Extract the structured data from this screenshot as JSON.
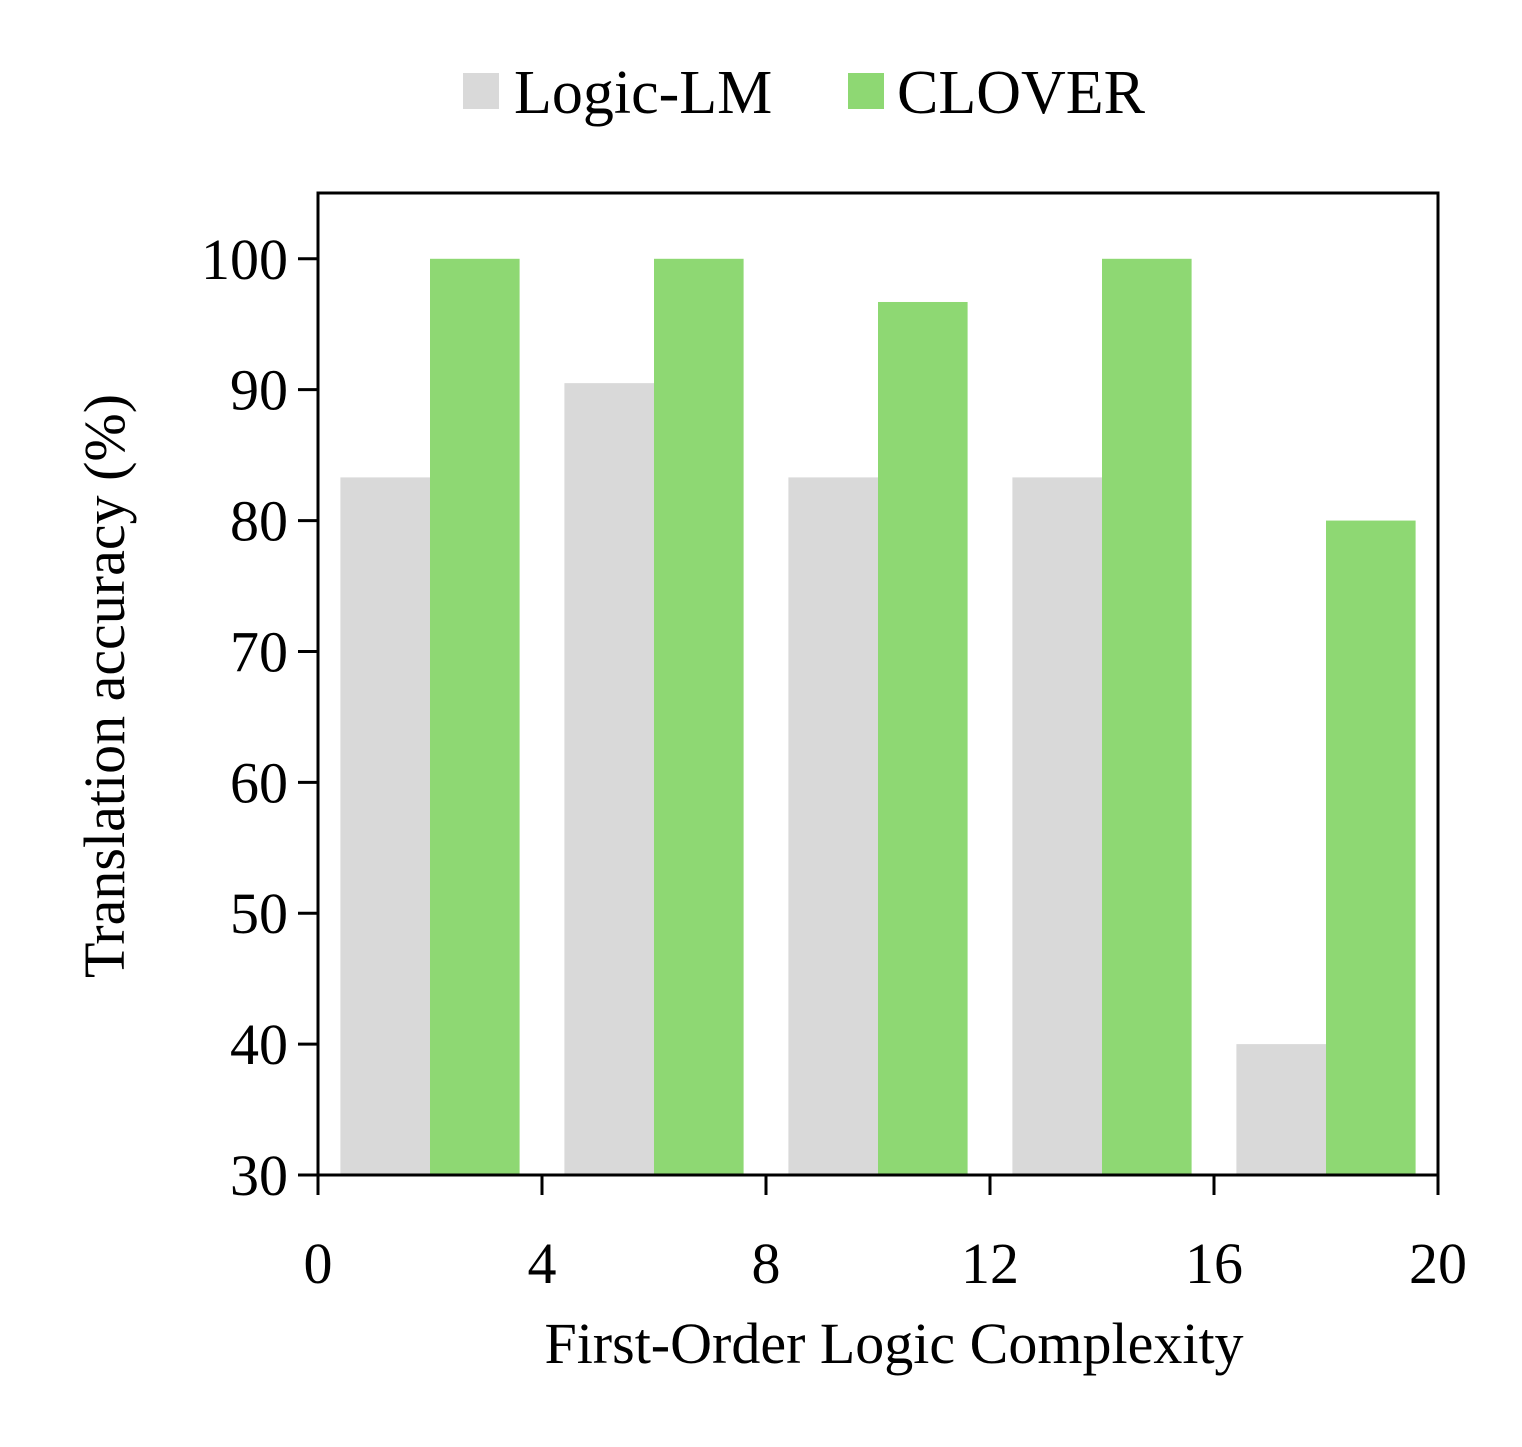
{
  "chart_data": {
    "type": "bar",
    "title": "",
    "xlabel": "First-Order Logic Complexity",
    "ylabel": "Translation accuracy (%)",
    "x": [
      2,
      6,
      10,
      14,
      18
    ],
    "xlim": [
      0,
      20
    ],
    "ylim": [
      30,
      100
    ],
    "xticks": [
      0,
      4,
      8,
      12,
      16,
      20
    ],
    "yticks": [
      30,
      40,
      50,
      60,
      70,
      80,
      90,
      100
    ],
    "grid": false,
    "legend_position": "top-center",
    "series": [
      {
        "name": "Logic-LM",
        "color": "#d9d9d9",
        "values": [
          83.3,
          90.5,
          83.3,
          83.3,
          40.0
        ]
      },
      {
        "name": "CLOVER",
        "color": "#8ed873",
        "values": [
          100,
          100,
          96.7,
          100,
          80.0
        ]
      }
    ]
  }
}
